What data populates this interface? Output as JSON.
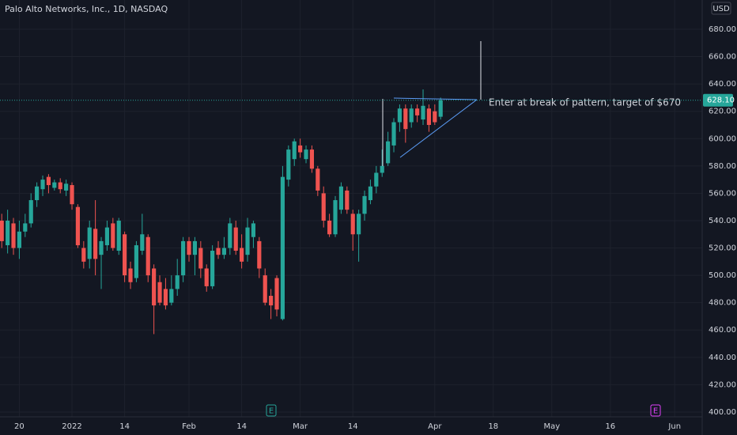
{
  "chart_data": {
    "type": "candlestick",
    "title": "Palo Alto Networks, Inc., 1D, NASDAQ",
    "currency": "USD",
    "x": [
      -12,
      -11,
      -10,
      -9,
      -8,
      -7,
      -6,
      -5,
      -4,
      -3,
      -2,
      -1,
      0,
      1,
      2,
      3,
      4,
      5,
      6,
      7,
      8,
      9,
      10,
      11,
      12,
      13,
      14,
      15,
      16,
      17,
      18,
      19,
      20,
      21,
      22,
      23,
      24,
      25,
      26,
      27,
      28,
      29,
      30,
      31,
      32,
      33,
      34,
      35,
      36,
      37,
      38,
      39,
      40,
      41,
      42,
      43,
      44,
      45,
      46,
      47,
      48,
      49,
      50,
      51,
      52,
      53,
      54,
      55,
      56,
      57,
      58,
      59,
      60,
      61,
      62,
      63
    ],
    "open": [
      540,
      522,
      538,
      520,
      532,
      538,
      555,
      563,
      572,
      564,
      568,
      562,
      566,
      550,
      520,
      512,
      534,
      515,
      522,
      538,
      518,
      530,
      505,
      498,
      518,
      528,
      505,
      495,
      490,
      480,
      490,
      500,
      525,
      515,
      520,
      505,
      492,
      520,
      515,
      520,
      535,
      520,
      515,
      528,
      525,
      500,
      485,
      498,
      468,
      570,
      585,
      595,
      585,
      592,
      578,
      560,
      540,
      530,
      548,
      562,
      545,
      530,
      545,
      555,
      565,
      575,
      582,
      595,
      612,
      622,
      612,
      622,
      614,
      622,
      620,
      616
    ],
    "high": [
      545,
      548,
      542,
      540,
      545,
      560,
      568,
      573,
      574,
      570,
      571,
      570,
      568,
      552,
      525,
      540,
      555,
      528,
      540,
      542,
      542,
      532,
      510,
      525,
      545,
      530,
      508,
      500,
      498,
      500,
      512,
      528,
      528,
      528,
      525,
      508,
      522,
      525,
      528,
      542,
      540,
      530,
      542,
      540,
      528,
      505,
      490,
      500,
      580,
      595,
      600,
      600,
      595,
      595,
      580,
      565,
      545,
      558,
      568,
      565,
      548,
      548,
      562,
      570,
      580,
      592,
      605,
      615,
      625,
      625,
      625,
      625,
      636,
      625,
      625,
      630
    ],
    "low": [
      520,
      516,
      515,
      512,
      528,
      535,
      550,
      558,
      560,
      562,
      560,
      558,
      548,
      520,
      505,
      505,
      500,
      490,
      518,
      518,
      515,
      495,
      490,
      495,
      515,
      495,
      457,
      478,
      475,
      478,
      485,
      495,
      510,
      500,
      498,
      488,
      490,
      512,
      512,
      515,
      515,
      505,
      510,
      520,
      498,
      478,
      468,
      470,
      467,
      565,
      580,
      586,
      582,
      575,
      558,
      535,
      528,
      528,
      545,
      545,
      518,
      510,
      540,
      552,
      560,
      572,
      580,
      590,
      605,
      597,
      608,
      612,
      610,
      605,
      610,
      614
    ],
    "close": [
      525,
      540,
      520,
      532,
      538,
      555,
      565,
      570,
      566,
      568,
      563,
      567,
      552,
      522,
      510,
      535,
      512,
      525,
      535,
      520,
      540,
      500,
      495,
      522,
      530,
      500,
      478,
      480,
      478,
      490,
      500,
      525,
      515,
      525,
      505,
      492,
      518,
      515,
      520,
      538,
      518,
      510,
      535,
      538,
      505,
      480,
      478,
      475,
      572,
      592,
      598,
      590,
      592,
      578,
      562,
      540,
      530,
      555,
      565,
      548,
      530,
      545,
      558,
      565,
      575,
      580,
      598,
      612,
      622,
      607,
      622,
      617,
      624,
      610,
      612,
      628.1
    ],
    "up_color": "#26a69a",
    "down_color": "#ef5350",
    "last_price": {
      "value": 628.1,
      "label": "628.10"
    },
    "annotation": "Enter at break of pattern, target of $670",
    "earnings_markers": [
      "E",
      "E"
    ],
    "xlim": [
      -12.3,
      107.7
    ],
    "xticks": [
      {
        "value": -9,
        "label": "20"
      },
      {
        "value": 0,
        "label": "2022"
      },
      {
        "value": 9,
        "label": "14"
      },
      {
        "value": 20,
        "label": "Feb"
      },
      {
        "value": 29,
        "label": "14"
      },
      {
        "value": 39,
        "label": "Mar"
      },
      {
        "value": 48,
        "label": "14"
      },
      {
        "value": 62,
        "label": "Apr"
      },
      {
        "value": 72,
        "label": "18"
      },
      {
        "value": 82,
        "label": "May"
      },
      {
        "value": 92,
        "label": "16"
      },
      {
        "value": 103,
        "label": "Jun"
      }
    ],
    "ylim": [
      396.5,
      701.4
    ],
    "yticks": [
      {
        "value": 400,
        "label": "400.00"
      },
      {
        "value": 420,
        "label": "420.00"
      },
      {
        "value": 440,
        "label": "440.00"
      },
      {
        "value": 460,
        "label": "460.00"
      },
      {
        "value": 480,
        "label": "480.00"
      },
      {
        "value": 500,
        "label": "500.00"
      },
      {
        "value": 520,
        "label": "520.00"
      },
      {
        "value": 540,
        "label": "540.00"
      },
      {
        "value": 560,
        "label": "560.00"
      },
      {
        "value": 580,
        "label": "580.00"
      },
      {
        "value": 600,
        "label": "600.00"
      },
      {
        "value": 620,
        "label": "620.00"
      },
      {
        "value": 640,
        "label": "640.00"
      },
      {
        "value": 660,
        "label": "660.00"
      },
      {
        "value": 680,
        "label": "680.00"
      }
    ],
    "grid": true
  }
}
